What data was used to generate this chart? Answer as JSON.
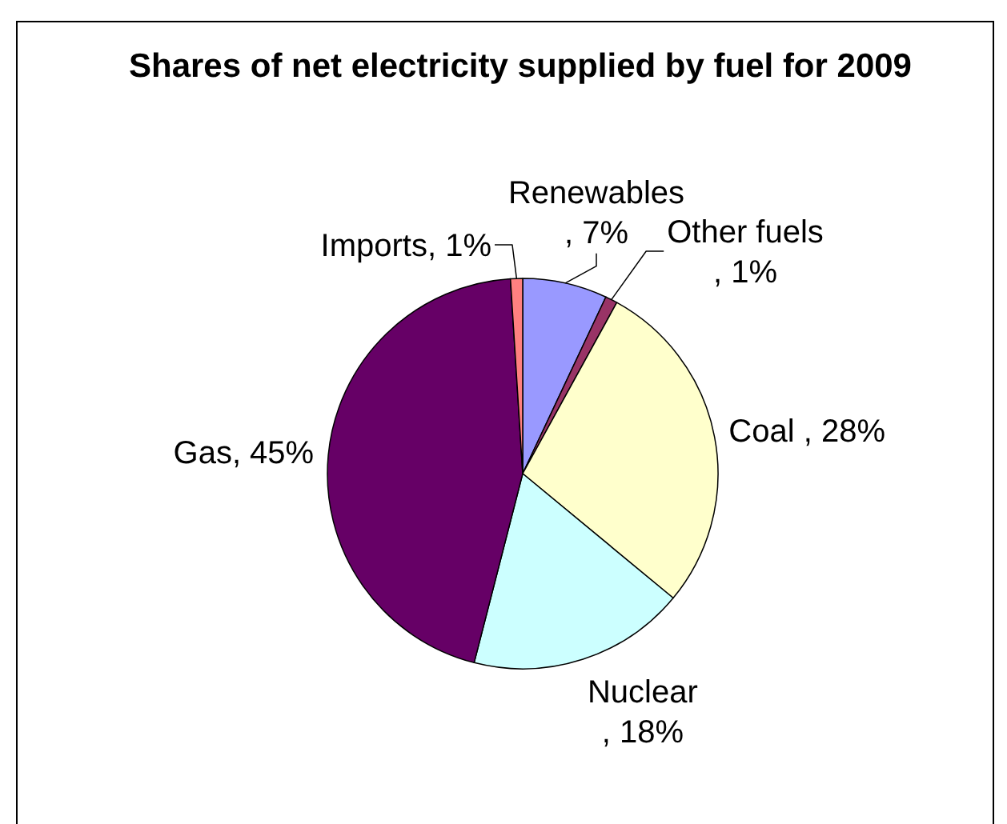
{
  "chart_data": {
    "type": "pie",
    "title": "Shares of net electricity supplied by fuel for 2009",
    "categories": [
      "Renewables ",
      "Other fuels",
      "Coal ",
      "Nuclear",
      "Gas",
      "Imports"
    ],
    "values": [
      7,
      1,
      28,
      18,
      45,
      1
    ],
    "colors": [
      "#9999ff",
      "#993366",
      "#ffffcc",
      "#ccffff",
      "#660066",
      "#ff8080"
    ],
    "value_labels": [
      ", 7%",
      ", 1%",
      ", 28%",
      ", 18%",
      ", 45%",
      ", 1%"
    ]
  }
}
